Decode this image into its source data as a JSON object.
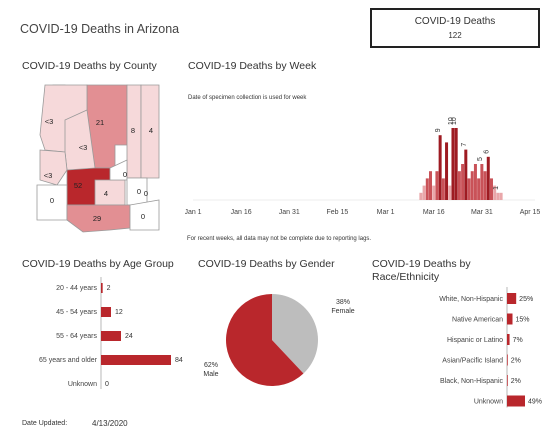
{
  "page_title": "COVID-19 Deaths in Arizona",
  "kpi": {
    "label": "COVID-19 Deaths",
    "value": "122"
  },
  "county": {
    "title": "COVID-19 Deaths by County",
    "counties": [
      {
        "label": "21",
        "value": 21
      },
      {
        "label": "8",
        "value": 8
      },
      {
        "label": "4",
        "value": 4
      },
      {
        "label": "<3",
        "value": 2
      },
      {
        "label": "<3",
        "value": 2
      },
      {
        "label": "<3",
        "value": 2
      },
      {
        "label": "52",
        "value": 52
      },
      {
        "label": "4",
        "value": 4
      },
      {
        "label": "0",
        "value": 0
      },
      {
        "label": "0",
        "value": 0
      },
      {
        "label": "0",
        "value": 0
      },
      {
        "label": "0",
        "value": 0
      },
      {
        "label": "29",
        "value": 29
      },
      {
        "label": "0",
        "value": 0
      }
    ],
    "colors": {
      "high": "#b9272c",
      "mid": "#e28f93",
      "low": "#f6d9da",
      "zero": "#ffffff",
      "stroke": "#9a9a9a"
    }
  },
  "week": {
    "title": "COVID-19 Deaths by Week",
    "subtitle": "Date of specimen collection is used for week",
    "footnote": "For recent weeks, all data may not be complete due to reporting lags."
  },
  "age": {
    "title": "COVID-19 Deaths by Age Group"
  },
  "gender": {
    "title": "COVID-19 Deaths by Gender",
    "female_pct": "38%",
    "female_label": "Female",
    "male_pct": "62%",
    "male_label": "Male"
  },
  "race": {
    "title_line1": "COVID-19 Deaths by",
    "title_line2": "Race/Ethnicity"
  },
  "footer": {
    "date_label": "Date Updated:",
    "date_value": "4/13/2020"
  },
  "chart_data": [
    {
      "type": "bar",
      "title": "COVID-19 Deaths by Week",
      "subtitle": "Date of specimen collection is used for week",
      "x_ticks": [
        "Jan 1",
        "Jan 16",
        "Jan 31",
        "Feb 15",
        "Mar 1",
        "Mar 16",
        "Mar 31",
        "Apr 15"
      ],
      "x_tick_days": [
        0,
        15,
        30,
        45,
        60,
        75,
        90,
        105
      ],
      "bars": [
        {
          "day": 71,
          "value": 1,
          "label": ""
        },
        {
          "day": 72,
          "value": 2,
          "label": ""
        },
        {
          "day": 73,
          "value": 3,
          "label": ""
        },
        {
          "day": 74,
          "value": 4,
          "label": ""
        },
        {
          "day": 75,
          "value": 2,
          "label": ""
        },
        {
          "day": 76,
          "value": 4,
          "label": ""
        },
        {
          "day": 77,
          "value": 9,
          "label": "9"
        },
        {
          "day": 78,
          "value": 3,
          "label": ""
        },
        {
          "day": 79,
          "value": 8,
          "label": ""
        },
        {
          "day": 80,
          "value": 2,
          "label": ""
        },
        {
          "day": 81,
          "value": 10,
          "label": "10"
        },
        {
          "day": 82,
          "value": 10,
          "label": "10"
        },
        {
          "day": 83,
          "value": 4,
          "label": ""
        },
        {
          "day": 84,
          "value": 5,
          "label": ""
        },
        {
          "day": 85,
          "value": 7,
          "label": "7"
        },
        {
          "day": 86,
          "value": 3,
          "label": ""
        },
        {
          "day": 87,
          "value": 4,
          "label": ""
        },
        {
          "day": 88,
          "value": 5,
          "label": ""
        },
        {
          "day": 89,
          "value": 3,
          "label": ""
        },
        {
          "day": 90,
          "value": 5,
          "label": "5"
        },
        {
          "day": 91,
          "value": 4,
          "label": ""
        },
        {
          "day": 92,
          "value": 6,
          "label": "6"
        },
        {
          "day": 93,
          "value": 3,
          "label": ""
        },
        {
          "day": 94,
          "value": 2,
          "label": ""
        },
        {
          "day": 95,
          "value": 1,
          "label": "1"
        },
        {
          "day": 96,
          "value": 1,
          "label": ""
        }
      ],
      "color": "#9e1b22"
    },
    {
      "type": "bar",
      "title": "COVID-19 Deaths by Age Group",
      "categories": [
        "20 - 44 years",
        "45 - 54 years",
        "55 - 64 years",
        "65 years and older",
        "Unknown"
      ],
      "values": [
        2,
        12,
        24,
        84,
        0
      ],
      "color": "#b9272c"
    },
    {
      "type": "pie",
      "title": "COVID-19 Deaths by Gender",
      "categories": [
        "Female",
        "Male"
      ],
      "values": [
        38,
        62
      ],
      "colors": [
        "#bdbdbd",
        "#b9272c"
      ]
    },
    {
      "type": "bar",
      "title": "COVID-19 Deaths by Race/Ethnicity",
      "categories": [
        "White, Non-Hispanic",
        "Native American",
        "Hispanic or Latino",
        "Asian/Pacific Island",
        "Black, Non-Hispanic",
        "Unknown"
      ],
      "values": [
        25,
        15,
        7,
        2,
        2,
        49
      ],
      "labels": [
        "25%",
        "15%",
        "7%",
        "2%",
        "2%",
        "49%"
      ],
      "color": "#b9272c"
    }
  ]
}
